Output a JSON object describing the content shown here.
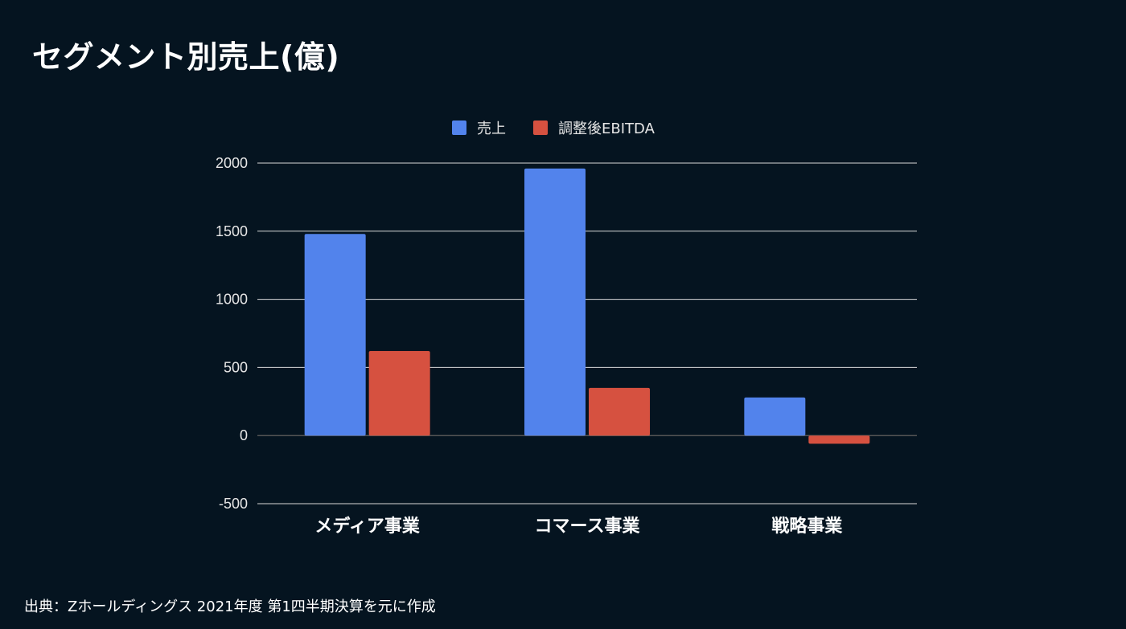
{
  "page": {
    "title": "セグメント別売上(億)",
    "source": "出典：Zホールディングス 2021年度 第1四半期決算を元に作成"
  },
  "colors": {
    "background": "#051420",
    "gridline": "#d9d9d9",
    "zero_line": "#555555",
    "sales": "#5283ec",
    "ebitda": "#d65140"
  },
  "chart_data": {
    "type": "bar",
    "title": "",
    "xlabel": "",
    "ylabel": "",
    "categories": [
      "メディア事業",
      "コマース事業",
      "戦略事業"
    ],
    "series": [
      {
        "name": "売上",
        "values": [
          1480,
          1960,
          280
        ]
      },
      {
        "name": "調整後EBITDA",
        "values": [
          620,
          350,
          -60
        ]
      }
    ],
    "ylim": [
      -500,
      2000
    ],
    "yticks": [
      2000,
      1500,
      1000,
      500,
      0,
      -500
    ],
    "grid": true,
    "legend_position": "top-center"
  }
}
